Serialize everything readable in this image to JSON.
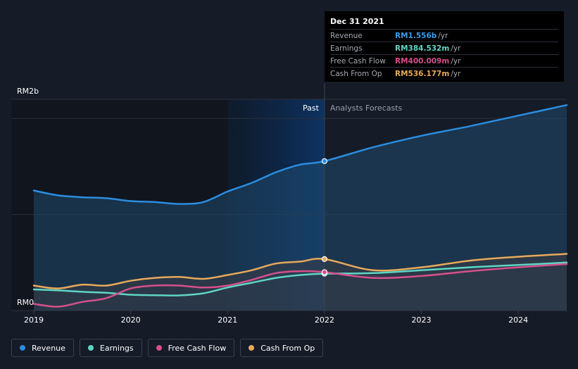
{
  "tooltip": {
    "date": "Dec 31 2021",
    "rows": [
      {
        "label": "Revenue",
        "value": "RM1.556b",
        "unit": "/yr",
        "color": "#3a9ce6"
      },
      {
        "label": "Earnings",
        "value": "RM384.532m",
        "unit": "/yr",
        "color": "#5fd6c4"
      },
      {
        "label": "Free Cash Flow",
        "value": "RM400.009m",
        "unit": "/yr",
        "color": "#d6508a"
      },
      {
        "label": "Cash From Op",
        "value": "RM536.177m",
        "unit": "/yr",
        "color": "#e8a95a"
      }
    ]
  },
  "legend": [
    {
      "label": "Revenue",
      "color": "#2b8de0"
    },
    {
      "label": "Earnings",
      "color": "#5fd6c4"
    },
    {
      "label": "Free Cash Flow",
      "color": "#d6508a"
    },
    {
      "label": "Cash From Op",
      "color": "#e8a95a"
    }
  ],
  "chart_data": {
    "type": "line",
    "ylabel_top": "RM2b",
    "ylabel_bottom": "RM0",
    "ylim": [
      0,
      2.2
    ],
    "xlim": [
      2019.0,
      2024.5
    ],
    "x_ticks": [
      "2019",
      "2020",
      "2021",
      "2022",
      "2023",
      "2024"
    ],
    "past_label": "Past",
    "forecast_label": "Analysts Forecasts",
    "divider_x": 2022.0,
    "highlight_start": 2021.0,
    "series": [
      {
        "name": "Revenue",
        "color": "#2b8de0",
        "points": [
          [
            2019.0,
            1.25
          ],
          [
            2019.25,
            1.2
          ],
          [
            2019.5,
            1.18
          ],
          [
            2019.75,
            1.17
          ],
          [
            2020.0,
            1.14
          ],
          [
            2020.25,
            1.13
          ],
          [
            2020.5,
            1.11
          ],
          [
            2020.75,
            1.13
          ],
          [
            2021.0,
            1.24
          ],
          [
            2021.25,
            1.33
          ],
          [
            2021.5,
            1.44
          ],
          [
            2021.75,
            1.52
          ],
          [
            2022.0,
            1.556
          ],
          [
            2022.5,
            1.7
          ],
          [
            2023.0,
            1.82
          ],
          [
            2023.5,
            1.92
          ],
          [
            2024.0,
            2.03
          ],
          [
            2024.5,
            2.14
          ]
        ]
      },
      {
        "name": "Earnings",
        "color": "#5fd6c4",
        "points": [
          [
            2019.0,
            0.22
          ],
          [
            2019.25,
            0.21
          ],
          [
            2019.5,
            0.195
          ],
          [
            2019.75,
            0.185
          ],
          [
            2020.0,
            0.165
          ],
          [
            2020.25,
            0.16
          ],
          [
            2020.5,
            0.158
          ],
          [
            2020.75,
            0.18
          ],
          [
            2021.0,
            0.24
          ],
          [
            2021.25,
            0.29
          ],
          [
            2021.5,
            0.34
          ],
          [
            2021.75,
            0.37
          ],
          [
            2022.0,
            0.3845
          ],
          [
            2022.5,
            0.39
          ],
          [
            2023.0,
            0.42
          ],
          [
            2023.5,
            0.45
          ],
          [
            2024.0,
            0.475
          ],
          [
            2024.5,
            0.5
          ]
        ]
      },
      {
        "name": "Free Cash Flow",
        "color": "#d6508a",
        "points": [
          [
            2019.0,
            0.07
          ],
          [
            2019.25,
            0.04
          ],
          [
            2019.5,
            0.09
          ],
          [
            2019.75,
            0.13
          ],
          [
            2020.0,
            0.23
          ],
          [
            2020.25,
            0.26
          ],
          [
            2020.5,
            0.26
          ],
          [
            2020.75,
            0.24
          ],
          [
            2021.0,
            0.26
          ],
          [
            2021.25,
            0.32
          ],
          [
            2021.5,
            0.39
          ],
          [
            2021.75,
            0.41
          ],
          [
            2022.0,
            0.4
          ],
          [
            2022.5,
            0.34
          ],
          [
            2023.0,
            0.36
          ],
          [
            2023.5,
            0.41
          ],
          [
            2024.0,
            0.45
          ],
          [
            2024.5,
            0.485
          ]
        ]
      },
      {
        "name": "Cash From Op",
        "color": "#e8a95a",
        "points": [
          [
            2019.0,
            0.26
          ],
          [
            2019.25,
            0.23
          ],
          [
            2019.5,
            0.27
          ],
          [
            2019.75,
            0.26
          ],
          [
            2020.0,
            0.31
          ],
          [
            2020.25,
            0.34
          ],
          [
            2020.5,
            0.35
          ],
          [
            2020.75,
            0.33
          ],
          [
            2021.0,
            0.37
          ],
          [
            2021.25,
            0.42
          ],
          [
            2021.5,
            0.49
          ],
          [
            2021.75,
            0.51
          ],
          [
            2022.0,
            0.536
          ],
          [
            2022.5,
            0.42
          ],
          [
            2023.0,
            0.45
          ],
          [
            2023.5,
            0.52
          ],
          [
            2024.0,
            0.56
          ],
          [
            2024.5,
            0.59
          ]
        ]
      }
    ]
  }
}
